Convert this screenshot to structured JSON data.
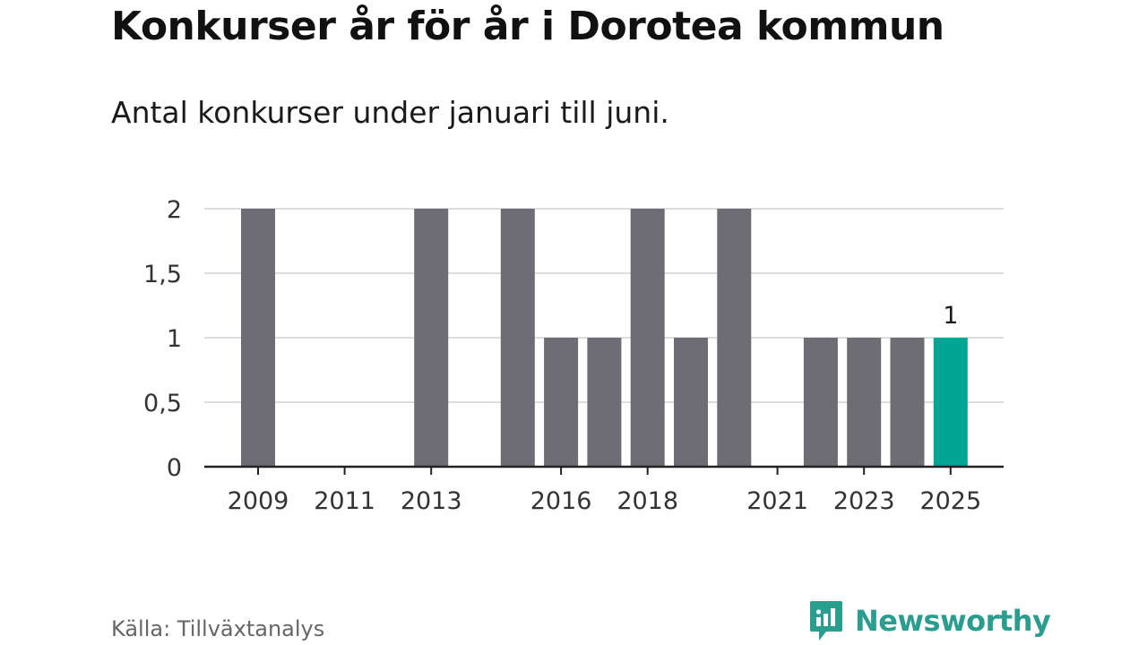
{
  "header": {
    "title": "Konkurser år för år i Dorotea kommun",
    "subtitle": "Antal konkurser under januari till juni."
  },
  "footer": {
    "source": "Källa: Tillväxtanalys",
    "brand": "Newsworthy"
  },
  "colors": {
    "bar": "#6e6d73",
    "highlight": "#00a693",
    "grid": "#dddddd",
    "axis": "#222222",
    "brand": "#2a9d8f"
  },
  "chart_data": {
    "type": "bar",
    "categories": [
      "2009",
      "2010",
      "2011",
      "2012",
      "2013",
      "2014",
      "2015",
      "2016",
      "2017",
      "2018",
      "2019",
      "2020",
      "2021",
      "2022",
      "2023",
      "2024",
      "2025"
    ],
    "values": [
      2,
      0,
      0,
      0,
      2,
      0,
      2,
      1,
      1,
      2,
      1,
      2,
      0,
      1,
      1,
      1,
      1
    ],
    "highlight_index": 16,
    "x_tick_labels": [
      "2009",
      "2011",
      "2013",
      "2016",
      "2018",
      "2021",
      "2023",
      "2025"
    ],
    "y_ticks": [
      0,
      0.5,
      1,
      1.5,
      2
    ],
    "y_tick_labels": [
      "0",
      "0,5",
      "1",
      "1,5",
      "2"
    ],
    "data_labels": [
      {
        "index": 16,
        "text": "1"
      }
    ],
    "title": "Konkurser år för år i Dorotea kommun",
    "subtitle": "Antal konkurser under januari till juni.",
    "xlabel": "",
    "ylabel": "",
    "ylim": [
      0,
      2
    ],
    "grid": true,
    "legend": "none"
  }
}
